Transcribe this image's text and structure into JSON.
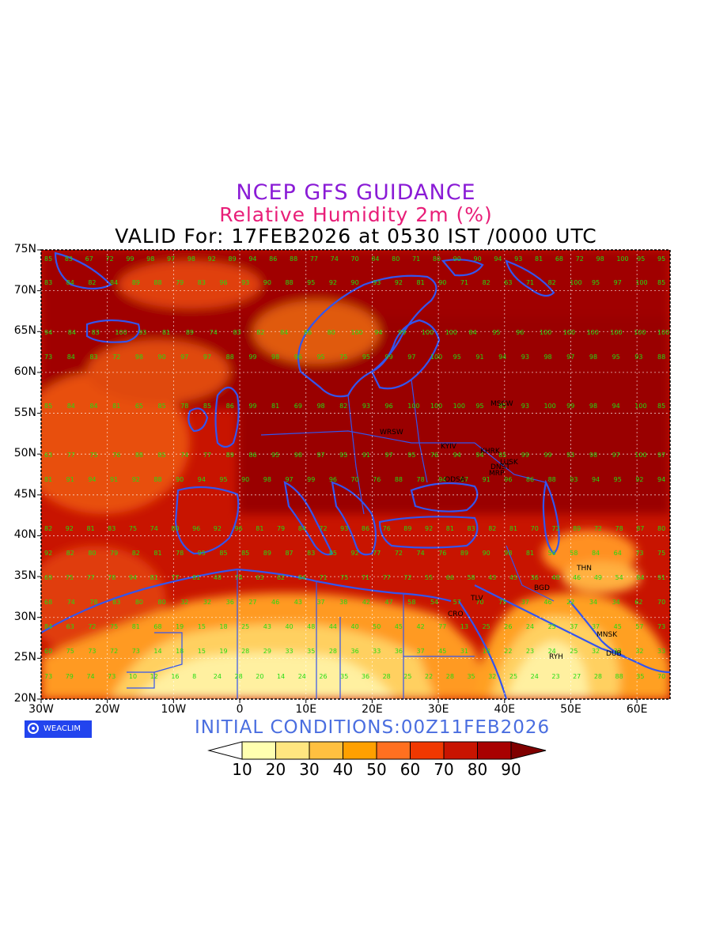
{
  "header": {
    "line1": "NCEP GFS GUIDANCE",
    "line2": "Relative Humidity 2m (%)",
    "line3": "VALID For: 17FEB2026 at 0530 IST /0000 UTC"
  },
  "axes": {
    "lat_labels": [
      "75N",
      "70N",
      "65N",
      "60N",
      "55N",
      "50N",
      "45N",
      "40N",
      "35N",
      "30N",
      "25N",
      "20N"
    ],
    "lon_labels": [
      "30W",
      "20W",
      "10W",
      "0",
      "10E",
      "20E",
      "30E",
      "40E",
      "50E",
      "60E"
    ]
  },
  "cities": [
    {
      "name": "MSCW"
    },
    {
      "name": "WRSW"
    },
    {
      "name": "KYIV"
    },
    {
      "name": "KHRK"
    },
    {
      "name": "LUSK"
    },
    {
      "name": "DNST"
    },
    {
      "name": "MRP"
    },
    {
      "name": "ODSA"
    },
    {
      "name": "THN"
    },
    {
      "name": "BGD"
    },
    {
      "name": "TLV"
    },
    {
      "name": "CRO"
    },
    {
      "name": "MNSK"
    },
    {
      "name": "RYH"
    },
    {
      "name": "DUB"
    }
  ],
  "grid_values": {
    "lat_rows": [
      {
        "lat": "75N",
        "values": [
          85,
          83,
          67,
          72,
          99,
          98,
          97,
          98,
          92,
          89,
          94,
          86,
          88,
          77,
          74,
          70,
          84,
          80,
          71,
          80,
          90,
          90,
          94,
          93,
          81,
          68,
          72,
          98,
          100,
          95,
          95
        ]
      },
      {
        "lat": "70N",
        "values": [
          83,
          84,
          82,
          84,
          89,
          88,
          79,
          83,
          96,
          93,
          90,
          88,
          95,
          92,
          90,
          93,
          92,
          81,
          90,
          71,
          82,
          63,
          71,
          82,
          100,
          95,
          97,
          100,
          85
        ]
      },
      {
        "lat": "65N",
        "values": [
          94,
          84,
          83,
          100,
          93,
          81,
          89,
          74,
          83,
          82,
          84,
          86,
          80,
          100,
          94,
          99,
          100,
          100,
          84,
          95,
          96,
          100,
          100,
          100,
          100,
          100,
          100
        ]
      },
      {
        "lat": "60N",
        "values": [
          73,
          84,
          83,
          72,
          98,
          90,
          97,
          97,
          88,
          99,
          98,
          96,
          95,
          75,
          95,
          99,
          97,
          100,
          95,
          91,
          94,
          93,
          98,
          97,
          98,
          95,
          93,
          88
        ]
      },
      {
        "lat": "55N",
        "values": [
          85,
          84,
          84,
          81,
          65,
          85,
          78,
          85,
          86,
          99,
          81,
          69,
          98,
          82,
          93,
          96,
          100,
          100,
          100,
          95,
          85,
          93,
          100,
          99,
          98,
          94,
          100,
          85
        ]
      },
      {
        "lat": "50N",
        "values": [
          63,
          77,
          75,
          76,
          88,
          85,
          74,
          77,
          89,
          86,
          95,
          98,
          97,
          95,
          91,
          97,
          95,
          76,
          94,
          94,
          85,
          99,
          99,
          93,
          98,
          97,
          100,
          97
        ]
      },
      {
        "lat": "45N",
        "values": [
          81,
          91,
          94,
          91,
          92,
          88,
          90,
          94,
          95,
          90,
          98,
          97,
          99,
          96,
          70,
          76,
          88,
          78,
          94,
          97,
          91,
          96,
          86,
          88,
          93,
          94,
          95,
          92,
          94
        ]
      },
      {
        "lat": "40N",
        "values": [
          82,
          92,
          81,
          83,
          75,
          74,
          80,
          96,
          92,
          96,
          81,
          79,
          84,
          72,
          93,
          86,
          76,
          89,
          92,
          81,
          83,
          82,
          81,
          70,
          72,
          89,
          72,
          78,
          87,
          80
        ]
      },
      {
        "lat": "35N",
        "values": [
          92,
          82,
          80,
          79,
          82,
          81,
          78,
          95,
          85,
          85,
          89,
          87,
          83,
          85,
          92,
          77,
          72,
          74,
          76,
          89,
          90,
          98,
          81,
          56,
          58,
          84,
          64,
          73,
          75
        ]
      },
      {
        "lat": "30N",
        "values": [
          69,
          75,
          77,
          78,
          94,
          81,
          77,
          81,
          48,
          74,
          63,
          62,
          84,
          71,
          75,
          71,
          77,
          72,
          55,
          66,
          58,
          43,
          45,
          36,
          48,
          46,
          49,
          54,
          84,
          91
        ]
      },
      {
        "lat": "25N",
        "values": [
          68,
          74,
          78,
          83,
          80,
          80,
          32,
          32,
          36,
          27,
          46,
          43,
          37,
          38,
          42,
          47,
          58,
          54,
          57,
          70,
          75,
          37,
          46,
          22,
          34,
          34,
          62,
          70
        ]
      },
      {
        "lat": "22N",
        "values": [
          84,
          63,
          72,
          75,
          81,
          68,
          19,
          15,
          18,
          25,
          43,
          40,
          48,
          44,
          40,
          50,
          45,
          42,
          77,
          13,
          25,
          26,
          24,
          25,
          37,
          37,
          45,
          57,
          73
        ]
      },
      {
        "lat": "20N",
        "values": [
          60,
          75,
          73,
          72,
          73,
          14,
          18,
          15,
          19,
          28,
          29,
          33,
          35,
          28,
          36,
          33,
          36,
          37,
          45,
          31,
          18,
          22,
          23,
          24,
          25,
          32,
          32,
          32,
          33
        ]
      },
      {
        "lat": "18N",
        "values": [
          73,
          79,
          74,
          73,
          10,
          12,
          16,
          8,
          24,
          28,
          20,
          14,
          24,
          26,
          35,
          36,
          28,
          25,
          22,
          28,
          35,
          32,
          25,
          24,
          23,
          27,
          28,
          88,
          35,
          70
        ]
      }
    ]
  },
  "logo": {
    "text": "WEACLIM"
  },
  "footer": {
    "initial": "INITIAL CONDITIONS:00Z11FEB2026"
  },
  "colorbar": {
    "labels": [
      "10",
      "20",
      "30",
      "40",
      "50",
      "60",
      "70",
      "80",
      "90"
    ],
    "colors": [
      "#ffffff",
      "#ffffb0",
      "#ffe680",
      "#ffc040",
      "#ffa000",
      "#ff7020",
      "#f03800",
      "#c81400",
      "#a80000",
      "#800000"
    ]
  }
}
